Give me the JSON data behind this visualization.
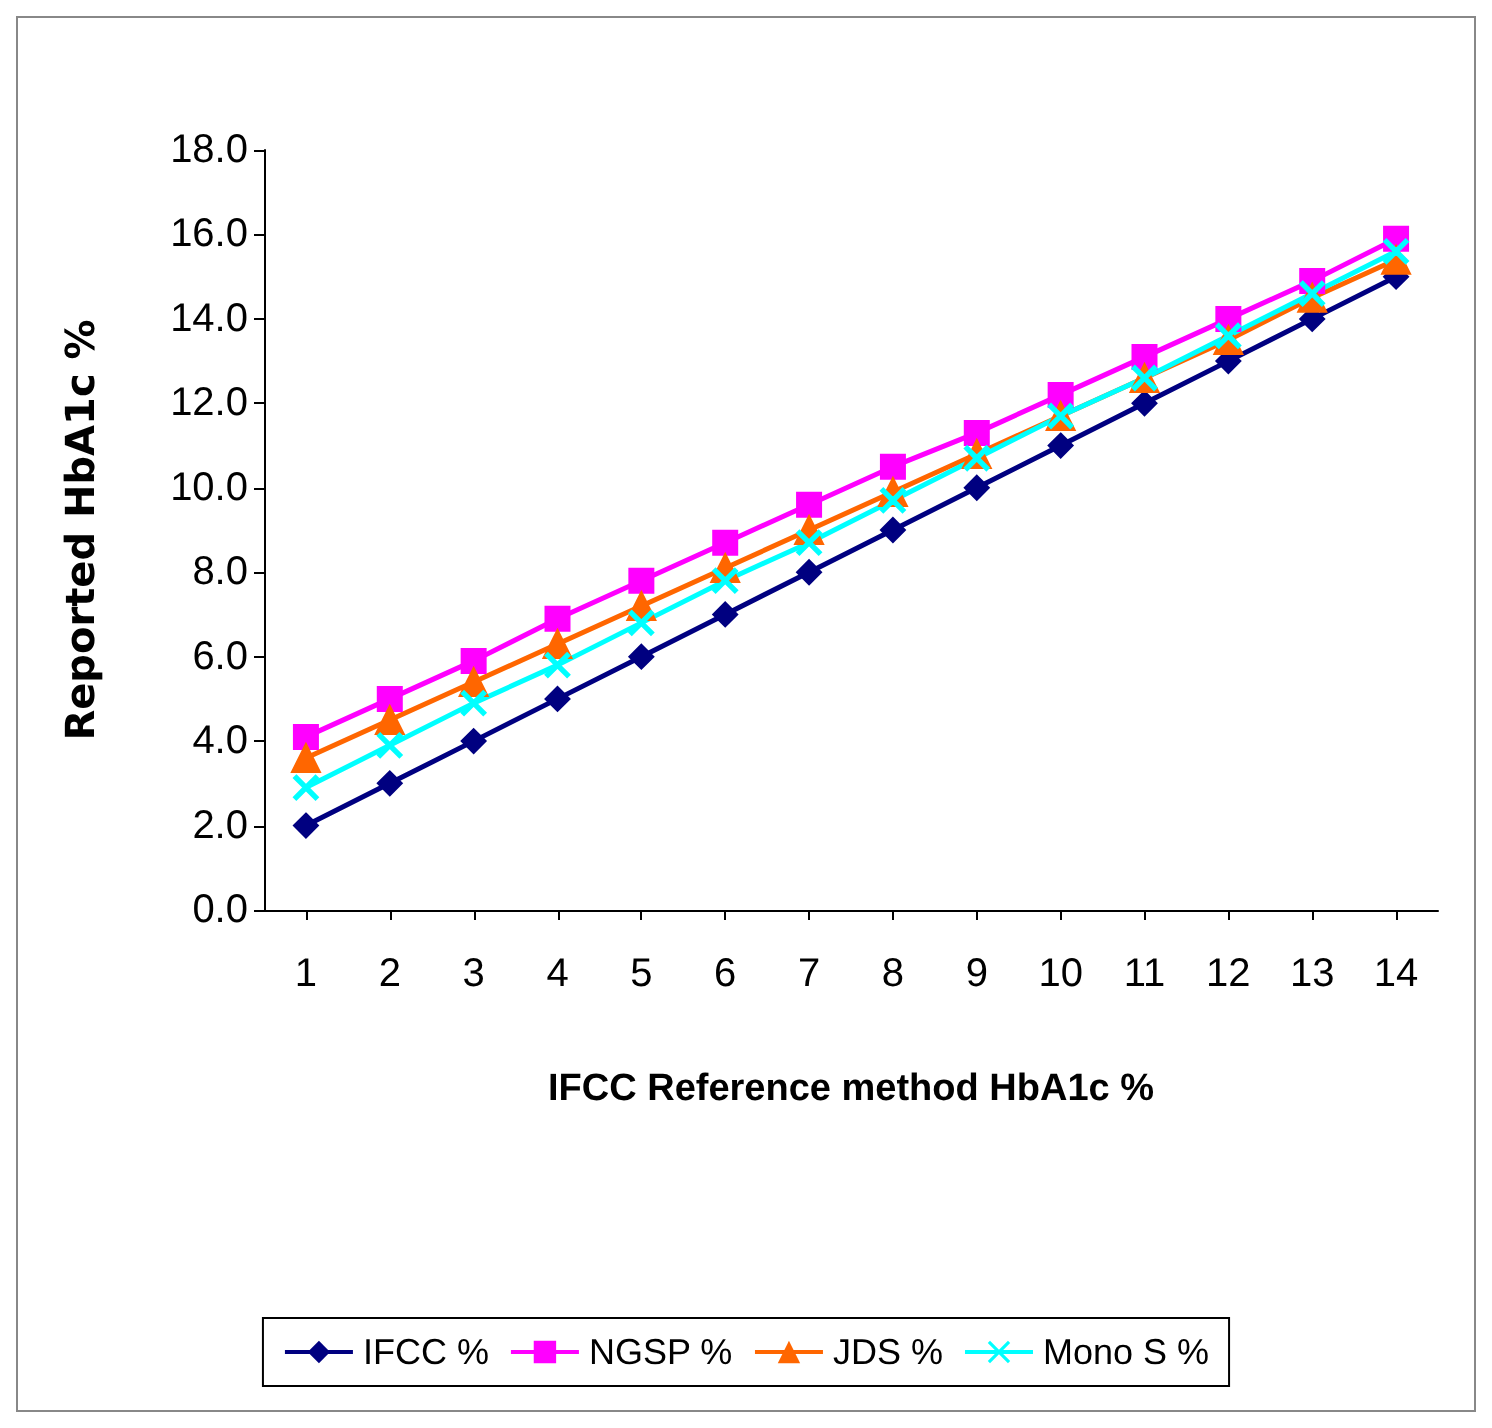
{
  "chart_data": {
    "type": "line",
    "xlabel": "IFCC Reference method HbA1c %",
    "ylabel": "Reported HbA1c %",
    "x": [
      1,
      2,
      3,
      4,
      5,
      6,
      7,
      8,
      9,
      10,
      11,
      12,
      13,
      14
    ],
    "xlim": [
      0.5,
      14.5
    ],
    "xticks": [
      1,
      2,
      3,
      4,
      5,
      6,
      7,
      8,
      9,
      10,
      11,
      12,
      13,
      14
    ],
    "series": [
      {
        "name": "IFCC %",
        "color": "#000080",
        "marker": "diamond",
        "values": [
          2,
          3,
          4,
          5,
          6,
          7,
          8,
          9,
          10,
          11,
          12,
          13,
          14,
          15
        ]
      },
      {
        "name": "NGSP %",
        "color": "#ff00ff",
        "marker": "square",
        "values": [
          4.1,
          5.0,
          5.9,
          6.9,
          7.8,
          8.7,
          9.6,
          10.5,
          11.3,
          12.2,
          13.1,
          14.0,
          14.9,
          15.9
        ]
      },
      {
        "name": "JDS %",
        "color": "#ff6600",
        "marker": "triangle",
        "values": [
          3.6,
          4.5,
          5.4,
          6.3,
          7.2,
          8.1,
          9.0,
          9.9,
          10.8,
          11.7,
          12.6,
          13.5,
          14.5,
          15.4
        ]
      },
      {
        "name": "Mono S %",
        "color": "#00ffff",
        "marker": "cross",
        "values": [
          2.9,
          3.9,
          4.9,
          5.8,
          6.8,
          7.8,
          8.7,
          9.7,
          10.7,
          11.7,
          12.6,
          13.6,
          14.6,
          15.6
        ]
      }
    ],
    "ylim": [
      0,
      18
    ],
    "yticks": [
      {
        "value": 0,
        "label": "0.0"
      },
      {
        "value": 2,
        "label": "2.0"
      },
      {
        "value": 4,
        "label": "4.0"
      },
      {
        "value": 6,
        "label": "6.0"
      },
      {
        "value": 8,
        "label": "8.0"
      },
      {
        "value": 10,
        "label": "10.0"
      },
      {
        "value": 12,
        "label": "12.0"
      },
      {
        "value": 14,
        "label": "14.0"
      },
      {
        "value": 16,
        "label": "16.0"
      },
      {
        "value": 18,
        "label": "18.0"
      }
    ],
    "grid": false,
    "legend": "bottom",
    "line_style": "solid"
  }
}
